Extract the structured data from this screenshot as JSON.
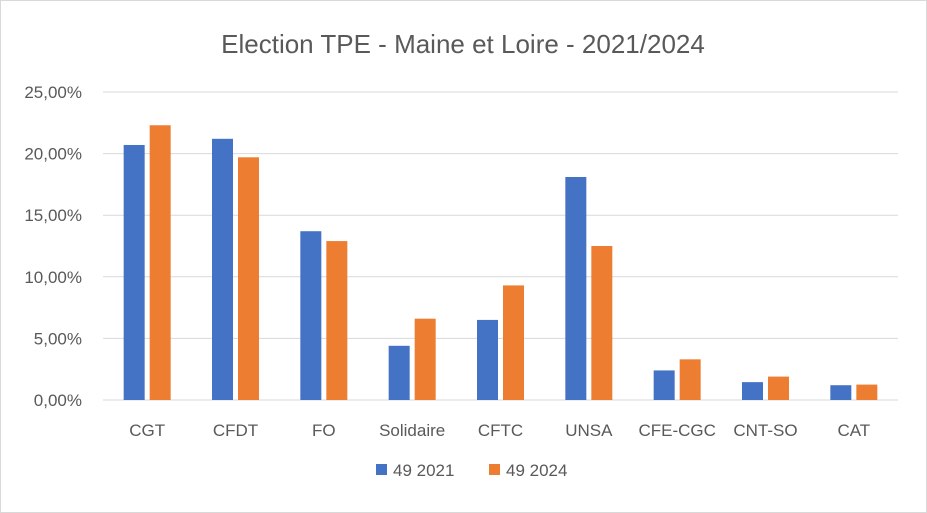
{
  "chart_data": {
    "type": "bar",
    "title": "Election TPE - Maine et Loire - 2021/2024",
    "categories": [
      "CGT",
      "CFDT",
      "FO",
      "Solidaire",
      "CFTC",
      "UNSA",
      "CFE-CGC",
      "CNT-SO",
      "CAT"
    ],
    "series": [
      {
        "name": "49 2021",
        "color": "#4472c4",
        "values": [
          20.7,
          21.2,
          13.7,
          4.4,
          6.5,
          18.1,
          2.4,
          1.45,
          1.2
        ]
      },
      {
        "name": "49 2024",
        "color": "#ed7d31",
        "values": [
          22.3,
          19.7,
          12.9,
          6.6,
          9.3,
          12.5,
          3.3,
          1.9,
          1.25
        ]
      }
    ],
    "ylim": [
      0,
      25
    ],
    "yticks": [
      "0,00%",
      "5,00%",
      "10,00%",
      "15,00%",
      "20,00%",
      "25,00%"
    ],
    "ytick_values": [
      0,
      5,
      10,
      15,
      20,
      25
    ],
    "grid": true,
    "legend_position": "bottom",
    "gridline_color": "#d9d9d9",
    "text_color": "#595959"
  }
}
